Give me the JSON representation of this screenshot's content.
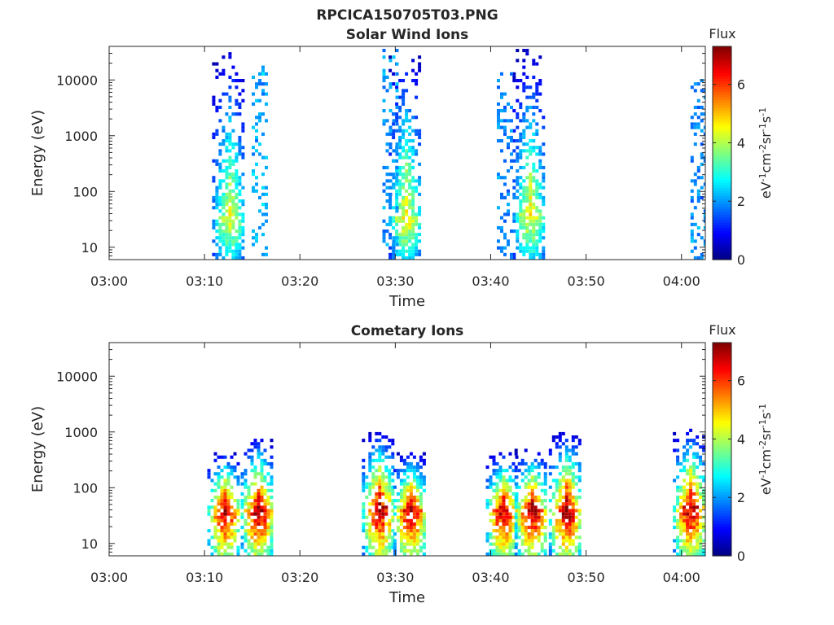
{
  "figure": {
    "title": "RPCICA150705T03.PNG"
  },
  "chart_data": [
    {
      "type": "heatmap",
      "title": "Solar Wind Ions",
      "xlabel": "Time",
      "ylabel": "Energy (eV)",
      "x_ticks": [
        "03:00",
        "03:10",
        "03:20",
        "03:30",
        "03:40",
        "03:50",
        "04:00"
      ],
      "x_range_minutes": [
        0,
        62.5
      ],
      "y_scale": "log",
      "y_ticks": [
        10,
        100,
        1000,
        10000
      ],
      "ylim": [
        6,
        40000
      ],
      "colorbar": {
        "label": "Flux",
        "units": "eV-1cm-2sr-1s-1",
        "ticks": [
          0,
          2,
          4,
          6
        ],
        "range": [
          0,
          7.3
        ],
        "colormap": "jet"
      },
      "bursts": [
        {
          "center_min": 12.5,
          "peak_energy_eV": 35,
          "max_energy_eV": 35000,
          "peak_flux": 4.6
        },
        {
          "center_min": 15.8,
          "peak_energy_eV": 3000,
          "max_energy_eV": 20000,
          "peak_flux": 2.3
        },
        {
          "center_min": 31.0,
          "peak_energy_eV": 35,
          "max_energy_eV": 35000,
          "peak_flux": 4.8
        },
        {
          "center_min": 29.5,
          "peak_energy_eV": 5000,
          "max_energy_eV": 35000,
          "peak_flux": 2.0
        },
        {
          "center_min": 44.0,
          "peak_energy_eV": 40,
          "max_energy_eV": 35000,
          "peak_flux": 4.7
        },
        {
          "center_min": 41.5,
          "peak_energy_eV": 2500,
          "max_energy_eV": 12000,
          "peak_flux": 2.0
        },
        {
          "center_min": 61.8,
          "peak_energy_eV": 2000,
          "max_energy_eV": 10000,
          "peak_flux": 2.0
        }
      ]
    },
    {
      "type": "heatmap",
      "title": "Cometary Ions",
      "xlabel": "Time",
      "ylabel": "Energy (eV)",
      "x_ticks": [
        "03:00",
        "03:10",
        "03:20",
        "03:30",
        "03:40",
        "03:50",
        "04:00"
      ],
      "x_range_minutes": [
        0,
        62.5
      ],
      "y_scale": "log",
      "y_ticks": [
        10,
        100,
        1000,
        10000
      ],
      "ylim": [
        6,
        40000
      ],
      "colorbar": {
        "label": "Flux",
        "units": "eV-1cm-2sr-1s-1",
        "ticks": [
          0,
          2,
          4,
          6
        ],
        "range": [
          0,
          7.3
        ],
        "colormap": "jet"
      },
      "bursts": [
        {
          "center_min": 12.0,
          "peak_energy_eV": 40,
          "max_energy_eV": 400,
          "peak_flux": 7.0
        },
        {
          "center_min": 15.5,
          "peak_energy_eV": 40,
          "max_energy_eV": 700,
          "peak_flux": 7.2
        },
        {
          "center_min": 28.2,
          "peak_energy_eV": 45,
          "max_energy_eV": 900,
          "peak_flux": 7.1
        },
        {
          "center_min": 31.5,
          "peak_energy_eV": 40,
          "max_energy_eV": 400,
          "peak_flux": 7.0
        },
        {
          "center_min": 41.2,
          "peak_energy_eV": 40,
          "max_energy_eV": 400,
          "peak_flux": 7.1
        },
        {
          "center_min": 44.2,
          "peak_energy_eV": 40,
          "max_energy_eV": 450,
          "peak_flux": 7.2
        },
        {
          "center_min": 47.8,
          "peak_energy_eV": 40,
          "max_energy_eV": 900,
          "peak_flux": 7.2
        },
        {
          "center_min": 60.8,
          "peak_energy_eV": 45,
          "max_energy_eV": 1000,
          "peak_flux": 7.1
        }
      ]
    }
  ]
}
